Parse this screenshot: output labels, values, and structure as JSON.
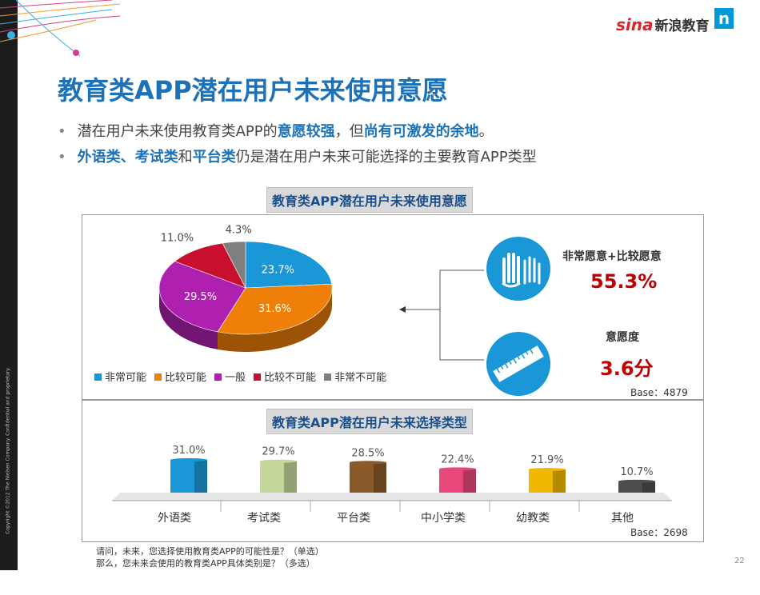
{
  "footer_vertical": "Copyright ©2012 The Nielsen Company. Confidential and proprietary.",
  "logo": {
    "brand": "sina",
    "text": "新浪教育",
    "n_mark": "n"
  },
  "title": "教育类APP潜在用户未来使用意愿",
  "bullets": [
    {
      "pre": "潜在用户未来使用教育类APP的",
      "h1": "意愿较强",
      "mid": "，但",
      "h2": "尚有可激发的余地",
      "post": "。"
    },
    {
      "h1": "外语类、考试类",
      "mid": "和",
      "h2": "平台类",
      "post": "仍是潜在用户未来可能选择的主要教育APP类型"
    }
  ],
  "section1": {
    "title": "教育类APP潜在用户未来使用意愿",
    "base": "Base：4879"
  },
  "section2": {
    "title": "教育类APP潜在用户未来选择类型",
    "base": "Base：2698"
  },
  "kpis": {
    "willing_label": "非常愿意+比较愿意",
    "willing_value": "55.3%",
    "degree_label": "意愿度",
    "degree_value": "3.6分",
    "icons": [
      "hands-icon",
      "ruler-icon"
    ]
  },
  "chart_data": [
    {
      "type": "pie",
      "categories": [
        "非常可能",
        "比较可能",
        "一般",
        "比较不可能",
        "非常不可能"
      ],
      "values": [
        23.7,
        31.6,
        29.5,
        11.0,
        4.3
      ],
      "labels": [
        "23.7%",
        "31.6%",
        "29.5%",
        "11.0%",
        "4.3%"
      ],
      "colors": [
        "#1a97d6",
        "#f07f09",
        "#b020b0",
        "#c8102e",
        "#7f7f7f"
      ],
      "legend_placement": "bottom"
    },
    {
      "type": "bar",
      "categories": [
        "外语类",
        "考试类",
        "平台类",
        "中小学类",
        "幼教类",
        "其他"
      ],
      "values": [
        31.0,
        29.7,
        28.5,
        22.4,
        21.9,
        10.7
      ],
      "labels": [
        "31.0%",
        "29.7%",
        "28.5%",
        "22.4%",
        "21.9%",
        "10.7%"
      ],
      "colors": [
        "#1a97d6",
        "#c4d89b",
        "#8a5a2b",
        "#e8477a",
        "#f0b800",
        "#4d4d4d"
      ],
      "grid": false
    }
  ],
  "footnotes": [
    "请问，未来，您选择使用教育类APP的可能性是？（单选）",
    "那么，您未来会使用的教育类APP具体类别是？（多选）"
  ],
  "page_number": "22"
}
